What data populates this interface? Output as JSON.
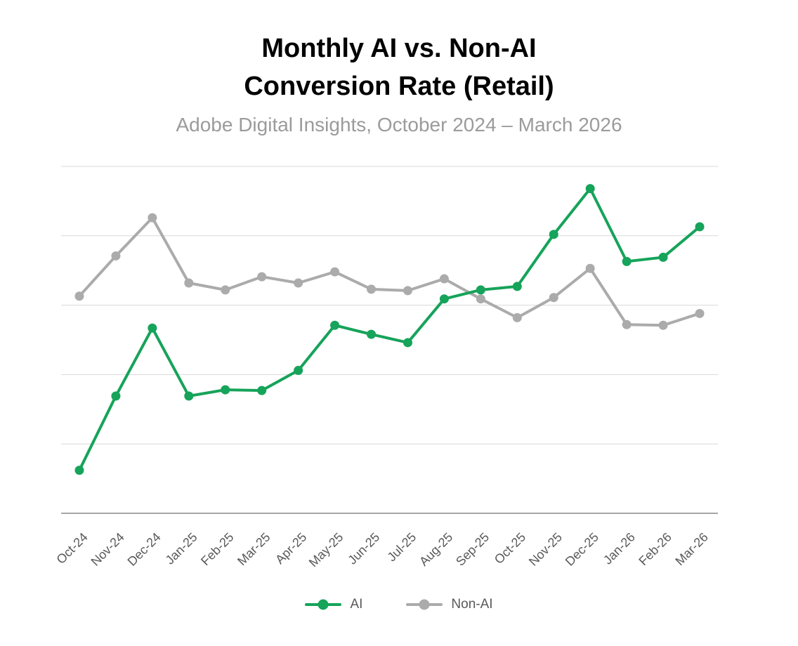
{
  "header": {
    "title_line1": "Monthly AI vs. Non-AI",
    "title_line2": "Conversion Rate (Retail)",
    "subtitle": "Adobe Digital Insights, October 2024 – March 2026"
  },
  "colors": {
    "ai_green": "#16a35a",
    "non_ai_gray": "#ababab",
    "gridline": "#d9d9d9",
    "axis_line": "#a6a6a6",
    "tick_label": "#595959",
    "subtitle_gray": "#9b9b9b",
    "title_black": "#000000"
  },
  "chart_data": {
    "type": "line",
    "title": "Monthly AI vs. Non-AI Conversion Rate (Retail)",
    "subtitle": "Adobe Digital Insights, October 2024 – March 2026",
    "categories": [
      "Oct-24",
      "Nov-24",
      "Dec-24",
      "Jan-25",
      "Feb-25",
      "Mar-25",
      "Apr-25",
      "May-25",
      "Jun-25",
      "Jul-25",
      "Aug-25",
      "Sep-25",
      "Oct-25",
      "Nov-25",
      "Dec-25",
      "Jan-26",
      "Feb-26",
      "Mar-26"
    ],
    "series": [
      {
        "name": "AI",
        "color": "#16a35a",
        "values": [
          0.62,
          1.69,
          2.67,
          1.69,
          1.78,
          1.77,
          2.06,
          2.71,
          2.58,
          2.46,
          3.09,
          3.22,
          3.27,
          4.02,
          4.68,
          3.63,
          3.69,
          4.13
        ]
      },
      {
        "name": "Non-AI",
        "color": "#ababab",
        "values": [
          3.13,
          3.71,
          4.26,
          3.32,
          3.22,
          3.41,
          3.32,
          3.48,
          3.23,
          3.21,
          3.38,
          3.09,
          2.82,
          3.11,
          3.53,
          2.72,
          2.71,
          2.88
        ]
      }
    ],
    "xlabel": "",
    "ylabel": "",
    "ylim": [
      0,
      5
    ],
    "gridlines": [
      1,
      2,
      3,
      4,
      5
    ],
    "y_axis_labels_visible": false,
    "grid": "horizontal",
    "legend_position": "bottom"
  }
}
